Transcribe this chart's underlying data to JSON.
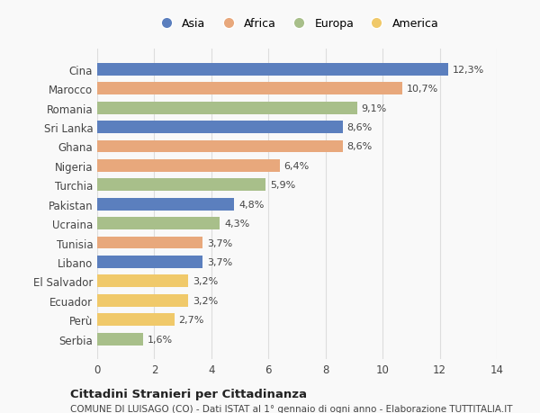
{
  "countries": [
    "Cina",
    "Marocco",
    "Romania",
    "Sri Lanka",
    "Ghana",
    "Nigeria",
    "Turchia",
    "Pakistan",
    "Ucraina",
    "Tunisia",
    "Libano",
    "El Salvador",
    "Ecuador",
    "Perù",
    "Serbia"
  ],
  "values": [
    12.3,
    10.7,
    9.1,
    8.6,
    8.6,
    6.4,
    5.9,
    4.8,
    4.3,
    3.7,
    3.7,
    3.2,
    3.2,
    2.7,
    1.6
  ],
  "labels": [
    "12,3%",
    "10,7%",
    "9,1%",
    "8,6%",
    "8,6%",
    "6,4%",
    "5,9%",
    "4,8%",
    "4,3%",
    "3,7%",
    "3,7%",
    "3,2%",
    "3,2%",
    "2,7%",
    "1,6%"
  ],
  "continents": [
    "Asia",
    "Africa",
    "Europa",
    "Asia",
    "Africa",
    "Africa",
    "Europa",
    "Asia",
    "Europa",
    "Africa",
    "Asia",
    "America",
    "America",
    "America",
    "Europa"
  ],
  "colors": {
    "Asia": "#5b7fbe",
    "Africa": "#e8a87c",
    "Europa": "#a8bf8a",
    "America": "#f0c96a"
  },
  "legend_order": [
    "Asia",
    "Africa",
    "Europa",
    "America"
  ],
  "title": "Cittadini Stranieri per Cittadinanza",
  "subtitle": "COMUNE DI LUISAGO (CO) - Dati ISTAT al 1° gennaio di ogni anno - Elaborazione TUTTITALIA.IT",
  "xlim": [
    0,
    14
  ],
  "xticks": [
    0,
    2,
    4,
    6,
    8,
    10,
    12,
    14
  ],
  "bg_color": "#f9f9f9",
  "grid_color": "#dddddd"
}
